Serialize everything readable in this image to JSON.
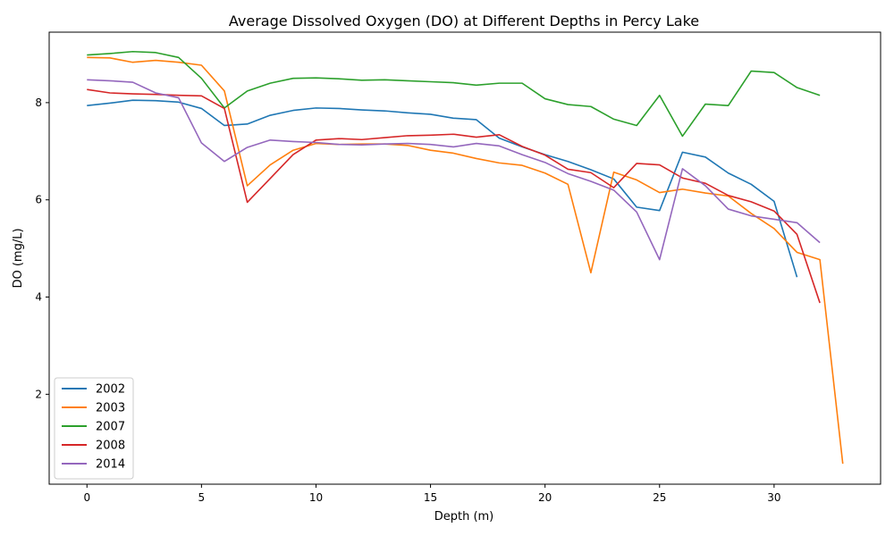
{
  "chart_data": {
    "type": "line",
    "title": "Average Dissolved Oxygen (DO) at Different Depths in Percy Lake",
    "xlabel": "Depth (m)",
    "ylabel": "DO (mg/L)",
    "xlim": [
      -1.65,
      34.65
    ],
    "ylim": [
      0.15,
      9.45
    ],
    "xticks": [
      0,
      5,
      10,
      15,
      20,
      25,
      30
    ],
    "yticks": [
      2,
      4,
      6,
      8
    ],
    "grid": false,
    "legend_position": "lower-left",
    "series": [
      {
        "name": "2002",
        "color": "#1f77b4",
        "x": [
          0,
          1,
          2,
          3,
          4,
          5,
          6,
          7,
          8,
          9,
          10,
          11,
          12,
          13,
          14,
          15,
          16,
          17,
          18,
          19,
          20,
          21,
          22,
          23,
          24,
          25,
          26,
          27,
          28,
          29,
          30,
          31
        ],
        "y": [
          7.94,
          7.99,
          8.05,
          8.04,
          8.01,
          7.88,
          7.53,
          7.56,
          7.74,
          7.84,
          7.89,
          7.88,
          7.85,
          7.83,
          7.79,
          7.76,
          7.68,
          7.65,
          7.27,
          7.09,
          6.93,
          6.79,
          6.62,
          6.43,
          5.85,
          5.78,
          6.98,
          6.88,
          6.55,
          6.32,
          5.97,
          4.41
        ]
      },
      {
        "name": "2003",
        "color": "#ff7f0e",
        "x": [
          0,
          1,
          2,
          3,
          4,
          5,
          6,
          7,
          8,
          9,
          10,
          11,
          12,
          13,
          14,
          15,
          16,
          17,
          18,
          19,
          20,
          21,
          22,
          23,
          24,
          25,
          26,
          27,
          28,
          29,
          30,
          31,
          32,
          33
        ],
        "y": [
          8.93,
          8.92,
          8.83,
          8.87,
          8.83,
          8.77,
          8.24,
          6.29,
          6.72,
          7.02,
          7.16,
          7.14,
          7.15,
          7.15,
          7.12,
          7.02,
          6.96,
          6.85,
          6.76,
          6.71,
          6.55,
          6.32,
          4.5,
          6.57,
          6.41,
          6.15,
          6.22,
          6.14,
          6.08,
          5.72,
          5.41,
          4.92,
          4.77,
          0.57
        ]
      },
      {
        "name": "2007",
        "color": "#2ca02c",
        "x": [
          0,
          1,
          2,
          3,
          4,
          5,
          6,
          7,
          8,
          9,
          10,
          11,
          12,
          13,
          14,
          15,
          16,
          17,
          18,
          19,
          20,
          21,
          22,
          23,
          24,
          25,
          26,
          27,
          28,
          29,
          30,
          31,
          32
        ],
        "y": [
          8.98,
          9.01,
          9.05,
          9.03,
          8.93,
          8.5,
          7.89,
          8.24,
          8.4,
          8.5,
          8.51,
          8.49,
          8.46,
          8.47,
          8.45,
          8.43,
          8.41,
          8.36,
          8.4,
          8.4,
          8.08,
          7.96,
          7.92,
          7.66,
          7.53,
          8.15,
          7.31,
          7.97,
          7.94,
          8.65,
          8.62,
          8.31,
          8.15
        ]
      },
      {
        "name": "2008",
        "color": "#d62728",
        "x": [
          0,
          1,
          2,
          3,
          4,
          5,
          6,
          7,
          8,
          9,
          10,
          11,
          12,
          13,
          14,
          15,
          16,
          17,
          18,
          19,
          20,
          21,
          22,
          23,
          24,
          25,
          26,
          27,
          28,
          29,
          30,
          31,
          32
        ],
        "y": [
          8.27,
          8.2,
          8.18,
          8.17,
          8.15,
          8.14,
          7.88,
          5.95,
          6.44,
          6.93,
          7.23,
          7.26,
          7.24,
          7.28,
          7.32,
          7.33,
          7.35,
          7.29,
          7.34,
          7.1,
          6.92,
          6.63,
          6.56,
          6.25,
          6.75,
          6.72,
          6.45,
          6.34,
          6.09,
          5.96,
          5.77,
          5.29,
          3.88
        ]
      },
      {
        "name": "2014",
        "color": "#9467bd",
        "x": [
          0,
          1,
          2,
          3,
          4,
          5,
          6,
          7,
          8,
          9,
          10,
          11,
          12,
          13,
          14,
          15,
          16,
          17,
          18,
          19,
          20,
          21,
          22,
          23,
          24,
          25,
          26,
          27,
          28,
          29,
          30,
          31,
          32
        ],
        "y": [
          8.47,
          8.45,
          8.42,
          8.2,
          8.1,
          7.17,
          6.79,
          7.08,
          7.23,
          7.2,
          7.18,
          7.14,
          7.13,
          7.15,
          7.16,
          7.14,
          7.09,
          7.16,
          7.11,
          6.93,
          6.77,
          6.54,
          6.38,
          6.2,
          5.75,
          4.77,
          6.64,
          6.29,
          5.81,
          5.67,
          5.6,
          5.53,
          5.12
        ]
      }
    ]
  }
}
